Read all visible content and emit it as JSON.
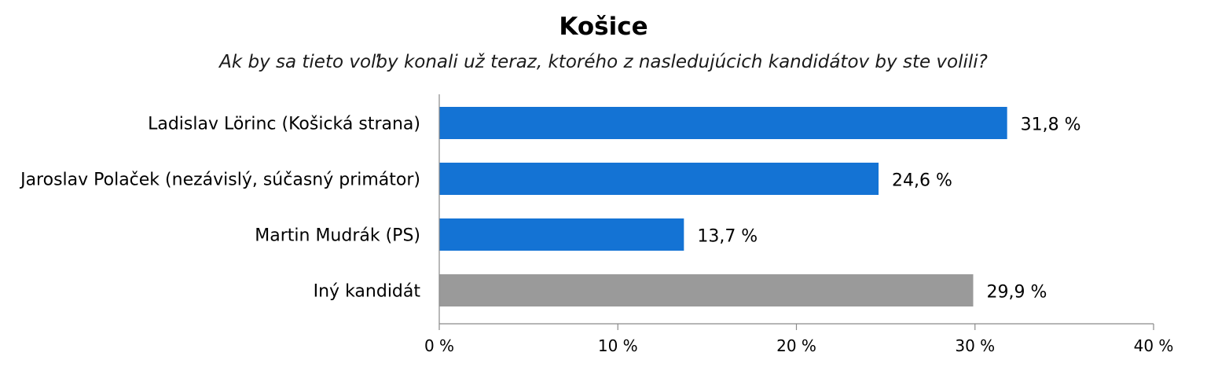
{
  "chart_data": {
    "type": "bar",
    "orientation": "horizontal",
    "title": "Košice",
    "subtitle": "Ak by sa tieto voľby konali už teraz, ktorého z nasledujúcich kandidátov by ste volili?",
    "categories": [
      "Ladislav Lörinc (Košická strana)",
      "Jaroslav Polaček (nezávislý, súčasný primátor)",
      "Martin Mudrák (PS)",
      "Iný kandidát"
    ],
    "values": [
      31.8,
      24.6,
      13.7,
      29.9
    ],
    "value_labels": [
      "31,8 %",
      "24,6 %",
      "13,7 %",
      "29,9 %"
    ],
    "bar_colors": [
      "#1473d4",
      "#1473d4",
      "#1473d4",
      "#9a9a9a"
    ],
    "xlim": [
      0,
      40
    ],
    "x_ticks": [
      0,
      10,
      20,
      30,
      40
    ],
    "x_tick_labels": [
      "0 %",
      "10 %",
      "20 %",
      "30 %",
      "40 %"
    ],
    "grid": false,
    "legend": "none"
  }
}
